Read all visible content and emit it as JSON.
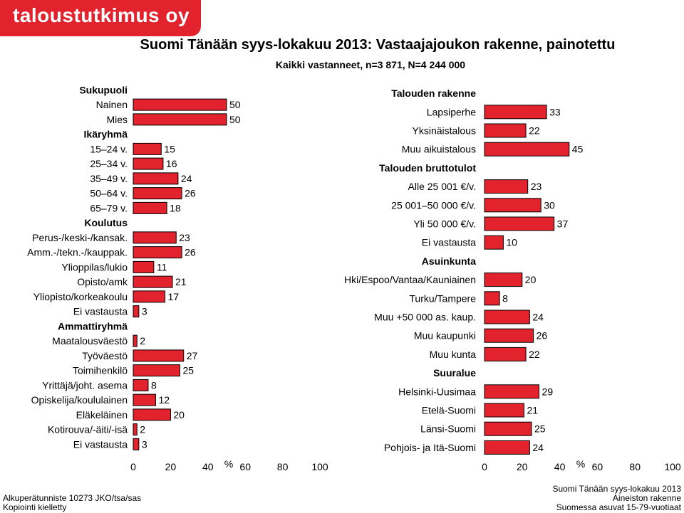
{
  "logo_text": "taloustutkimus oy",
  "title": "Suomi Tänään syys-lokakuu 2013: Vastaajajoukon rakenne, painotettu",
  "subtitle": "Kaikki vastanneet, n=3 871, N=4 244 000",
  "footer_left": [
    "Alkuperätunniste 10273 JKO/tsa/sas",
    "Kopiointi kielletty"
  ],
  "footer_right": [
    "Suomi Tänään syys-lokakuu 2013",
    "Aineiston rakenne",
    "Suomessa asuvat 15-79-vuotiaat"
  ],
  "colors": {
    "bar_fill": "#e2232d",
    "bar_stroke": "#000000",
    "brand": "#e2232d",
    "header_text": "#000000"
  },
  "chart_data": [
    {
      "type": "bar",
      "orientation": "horizontal",
      "xlabel": "%",
      "xlim": [
        0,
        100
      ],
      "xticks": [
        0,
        20,
        40,
        60,
        80,
        100
      ],
      "grid": false,
      "rows": [
        {
          "label": "Sukupuoli",
          "header": true
        },
        {
          "label": "Nainen",
          "value": 50
        },
        {
          "label": "Mies",
          "value": 50
        },
        {
          "label": "Ikäryhmä",
          "header": true
        },
        {
          "label": "15–24 v.",
          "value": 15
        },
        {
          "label": "25–34 v.",
          "value": 16
        },
        {
          "label": "35–49 v.",
          "value": 24
        },
        {
          "label": "50–64 v.",
          "value": 26
        },
        {
          "label": "65–79 v.",
          "value": 18
        },
        {
          "label": "Koulutus",
          "header": true
        },
        {
          "label": "Perus-/keski-/kansak.",
          "value": 23
        },
        {
          "label": "Amm.-/tekn.-/kauppak.",
          "value": 26
        },
        {
          "label": "Ylioppilas/lukio",
          "value": 11
        },
        {
          "label": "Opisto/amk",
          "value": 21
        },
        {
          "label": "Yliopisto/korkeakoulu",
          "value": 17
        },
        {
          "label": "Ei vastausta",
          "value": 3
        },
        {
          "label": "Ammattiryhmä",
          "header": true
        },
        {
          "label": "Maatalousväestö",
          "value": 2
        },
        {
          "label": "Työväestö",
          "value": 27
        },
        {
          "label": "Toimihenkilö",
          "value": 25
        },
        {
          "label": "Yrittäjä/joht. asema",
          "value": 8
        },
        {
          "label": "Opiskelija/koululainen",
          "value": 12
        },
        {
          "label": "Eläkeläinen",
          "value": 20
        },
        {
          "label": "Kotirouva/-äiti/-isä",
          "value": 2
        },
        {
          "label": "Ei vastausta",
          "value": 3
        }
      ]
    },
    {
      "type": "bar",
      "orientation": "horizontal",
      "xlabel": "%",
      "xlim": [
        0,
        100
      ],
      "xticks": [
        0,
        20,
        40,
        60,
        80,
        100
      ],
      "grid": false,
      "rows": [
        {
          "label": "Talouden rakenne",
          "header": true
        },
        {
          "label": "Lapsiperhe",
          "value": 33
        },
        {
          "label": "Yksinäistalous",
          "value": 22
        },
        {
          "label": "Muu aikuistalous",
          "value": 45
        },
        {
          "label": "Talouden bruttotulot",
          "header": true
        },
        {
          "label": "Alle 25 001 €/v.",
          "value": 23
        },
        {
          "label": "25 001–50 000 €/v.",
          "value": 30
        },
        {
          "label": "Yli 50 000 €/v.",
          "value": 37
        },
        {
          "label": "Ei vastausta",
          "value": 10
        },
        {
          "label": "Asuinkunta",
          "header": true
        },
        {
          "label": "Hki/Espoo/Vantaa/Kauniainen",
          "value": 20
        },
        {
          "label": "Turku/Tampere",
          "value": 8
        },
        {
          "label": "Muu +50 000 as. kaup.",
          "value": 24
        },
        {
          "label": "Muu kaupunki",
          "value": 26
        },
        {
          "label": "Muu kunta",
          "value": 22
        },
        {
          "label": "Suuralue",
          "header": true
        },
        {
          "label": "Helsinki-Uusimaa",
          "value": 29
        },
        {
          "label": "Etelä-Suomi",
          "value": 21
        },
        {
          "label": "Länsi-Suomi",
          "value": 25
        },
        {
          "label": "Pohjois- ja Itä-Suomi",
          "value": 24
        }
      ]
    }
  ]
}
